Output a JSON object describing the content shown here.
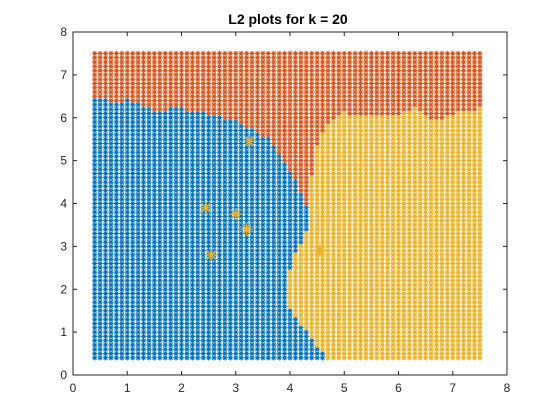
{
  "chart_data": {
    "type": "scatter",
    "title": "L2 plots for k = 20",
    "xlabel": "",
    "ylabel": "",
    "xlim": [
      0,
      8
    ],
    "ylim": [
      0,
      8
    ],
    "xticks": [
      "0",
      "1",
      "2",
      "3",
      "4",
      "5",
      "6",
      "7",
      "8"
    ],
    "yticks": [
      "0",
      "1",
      "2",
      "3",
      "4",
      "5",
      "6",
      "7",
      "8"
    ],
    "grid": false,
    "legend": "none",
    "marker": "asterisk",
    "grid_extent": {
      "x": [
        0.4,
        7.5
      ],
      "y": [
        0.4,
        7.5
      ],
      "step": 0.1
    },
    "series": [
      {
        "color": "#D95319",
        "region_description": "upper band, above the blue/yellow boundary",
        "boundary_top_of_blue": [
          [
            0.4,
            6.45
          ],
          [
            0.8,
            6.35
          ],
          [
            1.0,
            6.4
          ],
          [
            1.3,
            6.25
          ],
          [
            1.6,
            6.15
          ],
          [
            1.9,
            6.25
          ],
          [
            2.2,
            6.15
          ],
          [
            2.6,
            6.05
          ],
          [
            3.0,
            5.9
          ],
          [
            3.3,
            5.7
          ],
          [
            3.6,
            5.5
          ],
          [
            3.8,
            5.2
          ],
          [
            3.95,
            4.9
          ],
          [
            4.1,
            4.6
          ],
          [
            4.2,
            4.3
          ],
          [
            4.3,
            4.0
          ],
          [
            4.4,
            3.6
          ]
        ],
        "boundary_top_of_yellow": [
          [
            4.4,
            4.6
          ],
          [
            4.45,
            5.2
          ],
          [
            4.6,
            5.6
          ],
          [
            4.75,
            5.95
          ],
          [
            5.0,
            6.1
          ],
          [
            5.4,
            6.05
          ],
          [
            5.8,
            6.0
          ],
          [
            6.3,
            6.2
          ],
          [
            6.7,
            5.9
          ],
          [
            7.0,
            6.1
          ],
          [
            7.5,
            6.2
          ]
        ]
      },
      {
        "color": "#0072BD",
        "region_description": "left region",
        "right_edge": [
          [
            4.4,
            3.6
          ],
          [
            4.25,
            3.2
          ],
          [
            4.1,
            2.8
          ],
          [
            4.0,
            2.4
          ],
          [
            3.95,
            2.0
          ],
          [
            4.0,
            1.6
          ],
          [
            4.2,
            1.2
          ],
          [
            4.45,
            0.8
          ],
          [
            4.65,
            0.4
          ]
        ]
      },
      {
        "color": "#EDB120",
        "region_description": "lower-right region plus isolated points",
        "isolated_points": [
          [
            2.45,
            3.9
          ],
          [
            2.55,
            2.8
          ],
          [
            3.25,
            5.45
          ],
          [
            4.55,
            2.9
          ],
          [
            3.0,
            3.75
          ],
          [
            3.2,
            3.4
          ]
        ]
      }
    ]
  }
}
